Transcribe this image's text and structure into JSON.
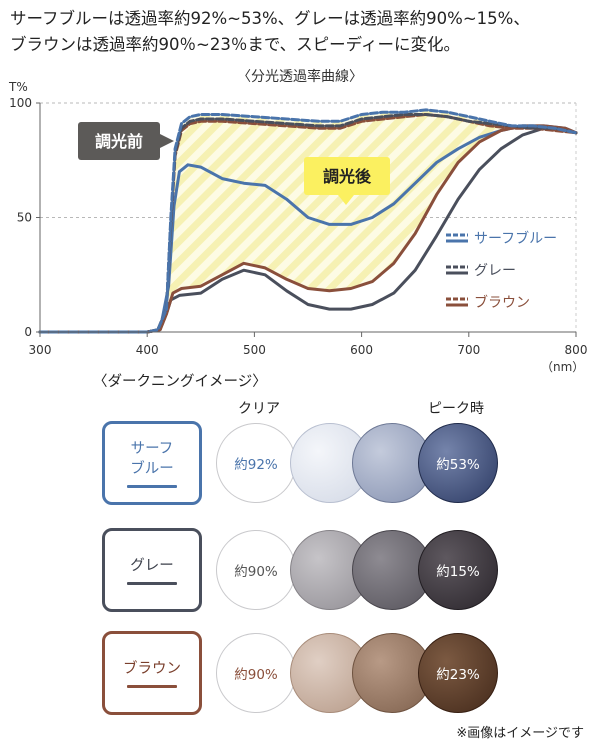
{
  "intro": {
    "line1": "サーフブルーは透過率約92%~53%、グレーは透過率約90%~15%、",
    "line2": "ブラウンは透過率約90％~23％まで、スピーディーに変化。"
  },
  "chart_data": {
    "type": "line",
    "title": "〈分光透過率曲線〉",
    "ylabel": "T%",
    "xlabel": "（nm）",
    "xlim": [
      300,
      800
    ],
    "ylim": [
      0,
      100
    ],
    "x_ticks": [
      300,
      400,
      500,
      600,
      700,
      800
    ],
    "y_ticks": [
      0,
      50,
      100
    ],
    "gridlines": "dashed at 50 and 100",
    "legend_position": "right, inside plot",
    "annotations": {
      "before": "調光前",
      "after": "調光後"
    },
    "series": [
      {
        "name": "サーフブルー",
        "state": "before",
        "style": "dashed",
        "color": "#4a74ab",
        "points": [
          [
            300,
            0
          ],
          [
            400,
            0
          ],
          [
            410,
            1
          ],
          [
            418,
            10
          ],
          [
            422,
            50
          ],
          [
            426,
            80
          ],
          [
            432,
            91
          ],
          [
            440,
            94
          ],
          [
            450,
            95
          ],
          [
            470,
            95
          ],
          [
            500,
            94
          ],
          [
            530,
            93
          ],
          [
            560,
            92
          ],
          [
            580,
            92
          ],
          [
            600,
            95
          ],
          [
            620,
            96
          ],
          [
            640,
            96
          ],
          [
            660,
            97
          ],
          [
            680,
            96
          ],
          [
            700,
            94
          ],
          [
            720,
            92
          ],
          [
            740,
            90
          ],
          [
            760,
            90
          ],
          [
            780,
            89
          ],
          [
            800,
            87
          ]
        ]
      },
      {
        "name": "サーフブルー",
        "state": "after",
        "style": "solid",
        "color": "#4a74ab",
        "points": [
          [
            300,
            0
          ],
          [
            400,
            0
          ],
          [
            412,
            1
          ],
          [
            420,
            20
          ],
          [
            425,
            55
          ],
          [
            430,
            70
          ],
          [
            438,
            73
          ],
          [
            450,
            72
          ],
          [
            470,
            67
          ],
          [
            490,
            65
          ],
          [
            510,
            64
          ],
          [
            530,
            58
          ],
          [
            550,
            50
          ],
          [
            570,
            47
          ],
          [
            590,
            47
          ],
          [
            610,
            50
          ],
          [
            630,
            56
          ],
          [
            650,
            65
          ],
          [
            670,
            74
          ],
          [
            690,
            80
          ],
          [
            710,
            85
          ],
          [
            730,
            88
          ],
          [
            750,
            90
          ],
          [
            770,
            90
          ],
          [
            790,
            89
          ],
          [
            800,
            87
          ]
        ]
      },
      {
        "name": "グレー",
        "state": "before",
        "style": "dashed",
        "color": "#4a4f5c",
        "points": [
          [
            300,
            0
          ],
          [
            400,
            0
          ],
          [
            410,
            1
          ],
          [
            418,
            10
          ],
          [
            422,
            48
          ],
          [
            426,
            78
          ],
          [
            432,
            89
          ],
          [
            440,
            92
          ],
          [
            450,
            93
          ],
          [
            470,
            93
          ],
          [
            500,
            92
          ],
          [
            530,
            91
          ],
          [
            560,
            90
          ],
          [
            580,
            90
          ],
          [
            600,
            93
          ],
          [
            620,
            94
          ],
          [
            640,
            95
          ],
          [
            660,
            95
          ],
          [
            680,
            94
          ],
          [
            700,
            92
          ],
          [
            720,
            91
          ],
          [
            740,
            90
          ],
          [
            760,
            89
          ],
          [
            780,
            89
          ],
          [
            800,
            87
          ]
        ]
      },
      {
        "name": "グレー",
        "state": "after",
        "style": "solid",
        "color": "#4a4f5c",
        "points": [
          [
            300,
            0
          ],
          [
            400,
            0
          ],
          [
            412,
            1
          ],
          [
            418,
            8
          ],
          [
            422,
            14
          ],
          [
            430,
            16
          ],
          [
            450,
            17
          ],
          [
            470,
            23
          ],
          [
            490,
            27
          ],
          [
            510,
            25
          ],
          [
            530,
            18
          ],
          [
            550,
            12
          ],
          [
            570,
            10
          ],
          [
            590,
            10
          ],
          [
            610,
            12
          ],
          [
            630,
            17
          ],
          [
            650,
            27
          ],
          [
            670,
            42
          ],
          [
            690,
            58
          ],
          [
            710,
            71
          ],
          [
            730,
            80
          ],
          [
            750,
            86
          ],
          [
            770,
            89
          ],
          [
            790,
            88
          ],
          [
            800,
            87
          ]
        ]
      },
      {
        "name": "ブラウン",
        "state": "before",
        "style": "dashed",
        "color": "#8a4f3b",
        "points": [
          [
            300,
            0
          ],
          [
            400,
            0
          ],
          [
            410,
            1
          ],
          [
            418,
            10
          ],
          [
            422,
            47
          ],
          [
            426,
            77
          ],
          [
            432,
            88
          ],
          [
            440,
            91
          ],
          [
            450,
            92
          ],
          [
            470,
            92
          ],
          [
            500,
            91
          ],
          [
            530,
            90
          ],
          [
            560,
            89
          ],
          [
            580,
            89
          ],
          [
            600,
            92
          ],
          [
            620,
            93
          ],
          [
            640,
            94
          ],
          [
            660,
            95
          ],
          [
            680,
            94
          ],
          [
            700,
            92
          ],
          [
            720,
            90
          ],
          [
            740,
            89
          ],
          [
            760,
            89
          ],
          [
            780,
            88
          ],
          [
            800,
            87
          ]
        ]
      },
      {
        "name": "ブラウン",
        "state": "after",
        "style": "solid",
        "color": "#8a4f3b",
        "points": [
          [
            300,
            0
          ],
          [
            400,
            0
          ],
          [
            412,
            1
          ],
          [
            418,
            8
          ],
          [
            424,
            17
          ],
          [
            432,
            19
          ],
          [
            450,
            20
          ],
          [
            470,
            25
          ],
          [
            490,
            30
          ],
          [
            510,
            28
          ],
          [
            530,
            23
          ],
          [
            550,
            19
          ],
          [
            570,
            18
          ],
          [
            590,
            19
          ],
          [
            610,
            22
          ],
          [
            630,
            30
          ],
          [
            650,
            43
          ],
          [
            670,
            60
          ],
          [
            690,
            74
          ],
          [
            710,
            83
          ],
          [
            730,
            88
          ],
          [
            750,
            90
          ],
          [
            770,
            90
          ],
          [
            790,
            89
          ],
          [
            800,
            87
          ]
        ]
      }
    ],
    "colors": {
      "blue": "#4a74ab",
      "gray": "#4a4f5c",
      "brown": "#8a4f3b",
      "before_callout": "#5c5a58",
      "after_callout": "#fbf060",
      "hatch": "#f6f1b3"
    }
  },
  "image_section": {
    "title": "〈ダークニングイメージ〉",
    "clear_label": "クリア",
    "peak_label": "ピーク時",
    "rows": [
      {
        "name_line1": "サーフ",
        "name_line2": "ブルー",
        "color": "#4a74ab",
        "lenses": [
          "約92%",
          "",
          "",
          "約53%"
        ],
        "fills": [
          "#ffffff",
          "#dfe3ec",
          "#a9b3cb",
          "#3e507c"
        ]
      },
      {
        "name_line1": "グレー",
        "name_line2": "",
        "color": "#4a4f5c",
        "lenses": [
          "約90%",
          "",
          "",
          "約15%"
        ],
        "fills": [
          "#ffffff",
          "#a8a6aa",
          "#6e6b72",
          "#3b363d"
        ]
      },
      {
        "name_line1": "ブラウン",
        "name_line2": "",
        "color": "#8a4f3b",
        "lenses": [
          "約90%",
          "",
          "",
          "約23%"
        ],
        "fills": [
          "#ffffff",
          "#c8b2a4",
          "#9e806c",
          "#5c3e28"
        ]
      }
    ]
  },
  "footnote": "※画像はイメージです"
}
